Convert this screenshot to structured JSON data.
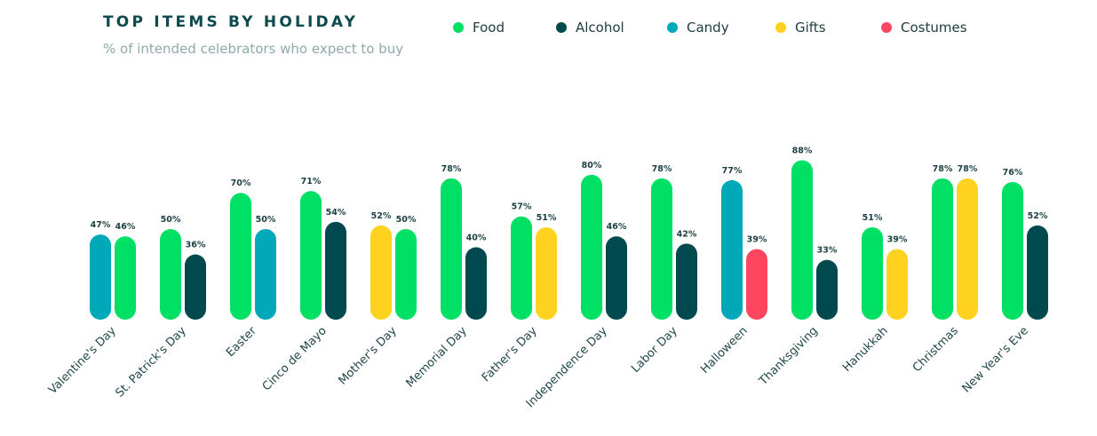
{
  "chart_data": {
    "type": "bar",
    "title": "TOP ITEMS BY HOLIDAY",
    "subtitle": "% of intended celebrators who expect to buy",
    "legend_position": "top-right",
    "grid": false,
    "ylim": [
      0,
      100
    ],
    "series_colors": {
      "Food": "#00e064",
      "Alcohol": "#004a4f",
      "Candy": "#00a8b8",
      "Gifts": "#ffd21f",
      "Costumes": "#ff4560"
    },
    "legend": [
      "Food",
      "Alcohol",
      "Candy",
      "Gifts",
      "Costumes"
    ],
    "categories": [
      {
        "name": "Valentine's Day",
        "bars": [
          {
            "series": "Candy",
            "value": 47,
            "label": "47%"
          },
          {
            "series": "Food",
            "value": 46,
            "label": "46%"
          }
        ]
      },
      {
        "name": "St. Patrick's Day",
        "bars": [
          {
            "series": "Food",
            "value": 50,
            "label": "50%"
          },
          {
            "series": "Alcohol",
            "value": 36,
            "label": "36%"
          }
        ]
      },
      {
        "name": "Easter",
        "bars": [
          {
            "series": "Food",
            "value": 70,
            "label": "70%"
          },
          {
            "series": "Candy",
            "value": 50,
            "label": "50%"
          }
        ]
      },
      {
        "name": "Cinco de Mayo",
        "bars": [
          {
            "series": "Food",
            "value": 71,
            "label": "71%"
          },
          {
            "series": "Alcohol",
            "value": 54,
            "label": "54%"
          }
        ]
      },
      {
        "name": "Mother's Day",
        "bars": [
          {
            "series": "Gifts",
            "value": 52,
            "label": "52%"
          },
          {
            "series": "Food",
            "value": 50,
            "label": "50%"
          }
        ]
      },
      {
        "name": "Memorial Day",
        "bars": [
          {
            "series": "Food",
            "value": 78,
            "label": "78%"
          },
          {
            "series": "Alcohol",
            "value": 40,
            "label": "40%"
          }
        ]
      },
      {
        "name": "Father's Day",
        "bars": [
          {
            "series": "Food",
            "value": 57,
            "label": "57%"
          },
          {
            "series": "Gifts",
            "value": 51,
            "label": "51%"
          }
        ]
      },
      {
        "name": "Independence Day",
        "bars": [
          {
            "series": "Food",
            "value": 80,
            "label": "80%"
          },
          {
            "series": "Alcohol",
            "value": 46,
            "label": "46%"
          }
        ]
      },
      {
        "name": "Labor Day",
        "bars": [
          {
            "series": "Food",
            "value": 78,
            "label": "78%"
          },
          {
            "series": "Alcohol",
            "value": 42,
            "label": "42%"
          }
        ]
      },
      {
        "name": "Halloween",
        "bars": [
          {
            "series": "Candy",
            "value": 77,
            "label": "77%"
          },
          {
            "series": "Costumes",
            "value": 39,
            "label": "39%"
          }
        ]
      },
      {
        "name": "Thanksgiving",
        "bars": [
          {
            "series": "Food",
            "value": 88,
            "label": "88%"
          },
          {
            "series": "Alcohol",
            "value": 33,
            "label": "33%"
          }
        ]
      },
      {
        "name": "Hanukkah",
        "bars": [
          {
            "series": "Food",
            "value": 51,
            "label": "51%"
          },
          {
            "series": "Gifts",
            "value": 39,
            "label": "39%"
          }
        ]
      },
      {
        "name": "Christmas",
        "bars": [
          {
            "series": "Food",
            "value": 78,
            "label": "78%"
          },
          {
            "series": "Gifts",
            "value": 78,
            "label": "78%"
          }
        ]
      },
      {
        "name": "New Year's Eve",
        "bars": [
          {
            "series": "Food",
            "value": 76,
            "label": "76%"
          },
          {
            "series": "Alcohol",
            "value": 52,
            "label": "52%"
          }
        ]
      }
    ]
  }
}
